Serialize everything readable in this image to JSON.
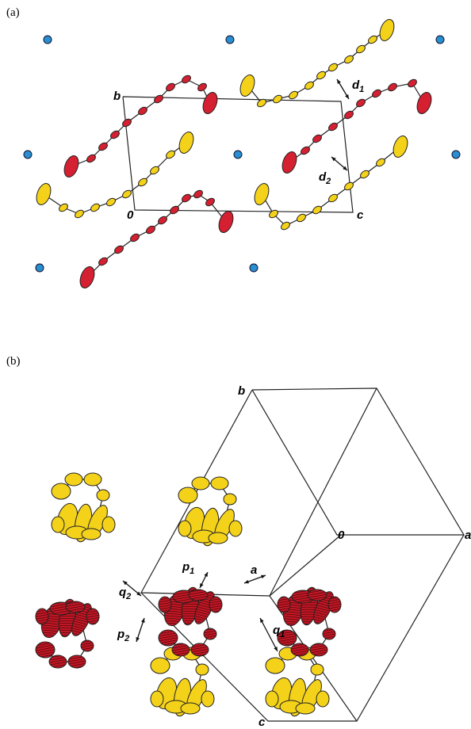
{
  "panel_a": {
    "label": "(a)",
    "axes": {
      "b": "b",
      "origin": "0",
      "c": "c"
    },
    "distances": [
      {
        "text": "d",
        "sub": "1"
      },
      {
        "text": "d",
        "sub": "2"
      }
    ]
  },
  "panel_b": {
    "label": "(b)",
    "axes": {
      "b": "b",
      "origin": "0",
      "a": "a",
      "c": "c"
    },
    "distances": [
      {
        "text": "p",
        "sub": "1"
      },
      {
        "text": "q",
        "sub": "2"
      },
      {
        "text": "p",
        "sub": "2"
      },
      {
        "text": "a"
      },
      {
        "text": "q",
        "sub": "1"
      }
    ]
  }
}
